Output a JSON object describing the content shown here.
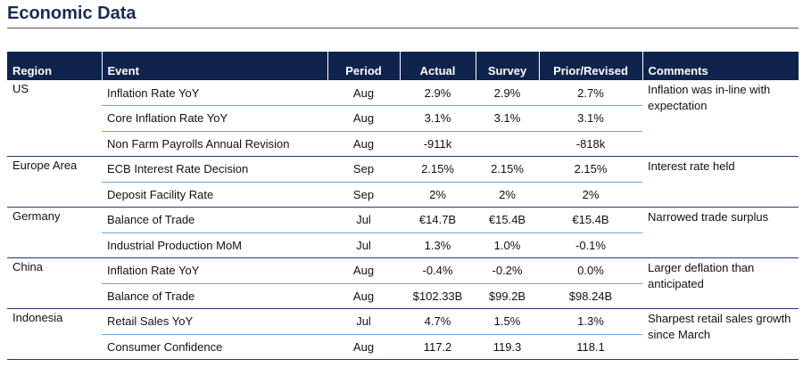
{
  "title": "Economic Data",
  "colors": {
    "header_bg": "#10234d",
    "title": "#1b2b55",
    "row_rule": "#6aa3d8"
  },
  "columns": [
    "Region",
    "Event",
    "Period",
    "Actual",
    "Survey",
    "Prior/Revised",
    "Comments"
  ],
  "groups": [
    {
      "region": "US",
      "comment": "Inflation was in-line with expectation",
      "rows": [
        {
          "event": "Inflation Rate YoY",
          "period": "Aug",
          "actual": "2.9%",
          "survey": "2.9%",
          "prior": "2.7%"
        },
        {
          "event": "Core Inflation Rate YoY",
          "period": "Aug",
          "actual": "3.1%",
          "survey": "3.1%",
          "prior": "3.1%"
        },
        {
          "event": "Non Farm Payrolls Annual Revision",
          "period": "Aug",
          "actual": "-911k",
          "survey": "",
          "prior": "-818k"
        }
      ]
    },
    {
      "region": "Europe Area",
      "comment": "Interest rate held",
      "rows": [
        {
          "event": "ECB Interest Rate Decision",
          "period": "Sep",
          "actual": "2.15%",
          "survey": "2.15%",
          "prior": "2.15%"
        },
        {
          "event": "Deposit Facility Rate",
          "period": "Sep",
          "actual": "2%",
          "survey": "2%",
          "prior": "2%"
        }
      ]
    },
    {
      "region": "Germany",
      "comment": "Narrowed trade surplus",
      "rows": [
        {
          "event": "Balance of Trade",
          "period": "Jul",
          "actual": "€14.7B",
          "survey": "€15.4B",
          "prior": "€15.4B"
        },
        {
          "event": "Industrial Production MoM",
          "period": "Jul",
          "actual": "1.3%",
          "survey": "1.0%",
          "prior": "-0.1%"
        }
      ]
    },
    {
      "region": "China",
      "comment": "Larger deflation than anticipated",
      "rows": [
        {
          "event": "Inflation Rate YoY",
          "period": "Aug",
          "actual": "-0.4%",
          "survey": "-0.2%",
          "prior": "0.0%"
        },
        {
          "event": "Balance of Trade",
          "period": "Aug",
          "actual": "$102.33B",
          "survey": "$99.2B",
          "prior": "$98.24B"
        }
      ]
    },
    {
      "region": "Indonesia",
      "comment": "Sharpest retail sales growth since March",
      "rows": [
        {
          "event": "Retail Sales YoY",
          "period": "Jul",
          "actual": "4.7%",
          "survey": "1.5%",
          "prior": "1.3%"
        },
        {
          "event": "Consumer Confidence",
          "period": "Aug",
          "actual": "117.2",
          "survey": "119.3",
          "prior": "118.1"
        }
      ]
    }
  ]
}
